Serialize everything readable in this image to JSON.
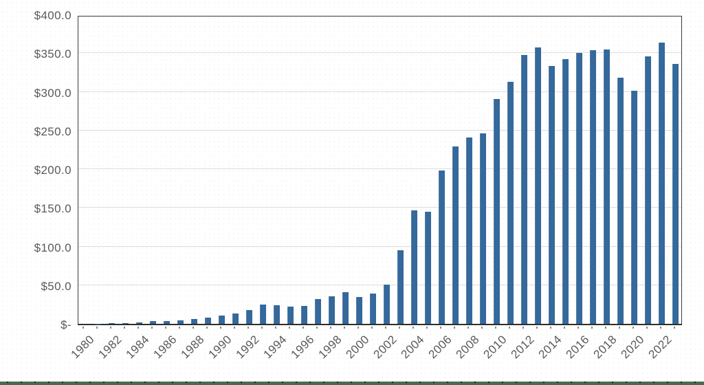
{
  "page": {
    "background_color": "#ffffff"
  },
  "chart_data": {
    "type": "bar",
    "title": "",
    "xlabel": "",
    "ylabel": "",
    "x": [
      1980,
      1981,
      1982,
      1983,
      1984,
      1985,
      1986,
      1987,
      1988,
      1989,
      1990,
      1991,
      1992,
      1993,
      1994,
      1995,
      1996,
      1997,
      1998,
      1999,
      2000,
      2001,
      2002,
      2003,
      2004,
      2005,
      2006,
      2007,
      2008,
      2009,
      2010,
      2011,
      2012,
      2013,
      2014,
      2015,
      2016,
      2017,
      2018,
      2019,
      2020,
      2021,
      2022,
      2023
    ],
    "values": [
      0,
      0.1,
      0.5,
      1.3,
      1.9,
      3.3,
      3.9,
      4.8,
      6.5,
      8,
      10.3,
      13.5,
      17.5,
      24.8,
      23.7,
      22,
      23.2,
      32,
      35.2,
      40.5,
      34.5,
      39,
      50.5,
      95,
      147,
      145,
      198,
      229,
      241,
      246,
      291,
      313,
      348,
      357,
      333,
      342,
      350,
      354,
      355,
      318,
      301,
      346,
      364,
      336
    ],
    "value_unit_prefix": "$",
    "ylim": [
      0,
      400
    ],
    "y_tick_step": 50,
    "y_tick_labels_top_to_bottom": [
      "$400.0",
      "$350.0",
      "$300.0",
      "$250.0",
      "$200.0",
      "$150.0",
      "$100.0",
      "$50.0",
      "$-"
    ],
    "x_tick_labels": [
      "1980",
      "1982",
      "1984",
      "1986",
      "1988",
      "1990",
      "1992",
      "1994",
      "1996",
      "1998",
      "2000",
      "2002",
      "2004",
      "2006",
      "2008",
      "2010",
      "2012",
      "2014",
      "2016",
      "2018",
      "2020",
      "2022"
    ],
    "x_tick_label_rotation_deg": 45,
    "grid": "horizontal",
    "legend": "none",
    "bar_color": "#35689B",
    "gridline_color": "#dcdcdc",
    "plot_border_color": "#3a3a3a",
    "axis_label_color": "#595959"
  },
  "footer_strip": {
    "color": "#4A6B4F",
    "tick_color": "#15201a"
  }
}
